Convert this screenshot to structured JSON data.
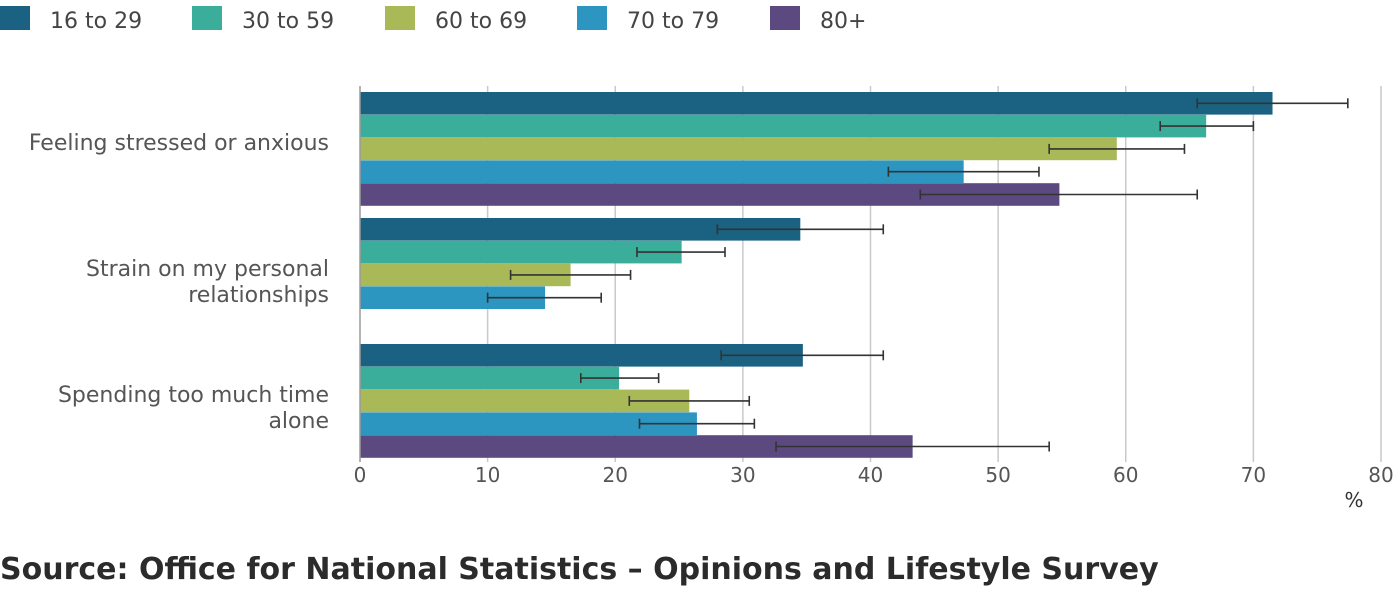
{
  "chart_data": {
    "type": "bar",
    "orientation": "horizontal",
    "categories": [
      [
        "Feeling stressed or anxious"
      ],
      [
        "Strain on my personal",
        "relationships"
      ],
      [
        "Spending too much time",
        "alone"
      ]
    ],
    "series": [
      {
        "name": "16 to 29",
        "color": "#1b6282",
        "values": [
          71.5,
          34.5,
          34.7
        ],
        "err_low": [
          65.6,
          28.0,
          28.3
        ],
        "err_high": [
          77.4,
          41.0,
          41.0
        ]
      },
      {
        "name": "30 to 59",
        "color": "#3aae9a",
        "values": [
          66.3,
          25.2,
          20.3
        ],
        "err_low": [
          62.7,
          21.7,
          17.3
        ],
        "err_high": [
          70.0,
          28.6,
          23.4
        ]
      },
      {
        "name": "60 to 69",
        "color": "#a9b957",
        "values": [
          59.3,
          16.5,
          25.8
        ],
        "err_low": [
          54.0,
          11.8,
          21.1
        ],
        "err_high": [
          64.6,
          21.2,
          30.5
        ]
      },
      {
        "name": "70 to 79",
        "color": "#2c95c0",
        "values": [
          47.3,
          14.5,
          26.4
        ],
        "err_low": [
          41.4,
          10.0,
          21.9
        ],
        "err_high": [
          53.2,
          18.9,
          30.9
        ]
      },
      {
        "name": "80+",
        "color": "#5b497f",
        "values": [
          54.8,
          null,
          43.3
        ],
        "err_low": [
          43.9,
          null,
          32.6
        ],
        "err_high": [
          65.6,
          null,
          54.0
        ]
      }
    ],
    "xlim": [
      0,
      80
    ],
    "xticks": [
      "0",
      "10",
      "20",
      "30",
      "40",
      "50",
      "60",
      "70",
      "80"
    ],
    "xlabel": "%",
    "grid": true,
    "legend_position": "top-left"
  },
  "source_text": "Source: Office for National Statistics – Opinions and Lifestyle Survey"
}
